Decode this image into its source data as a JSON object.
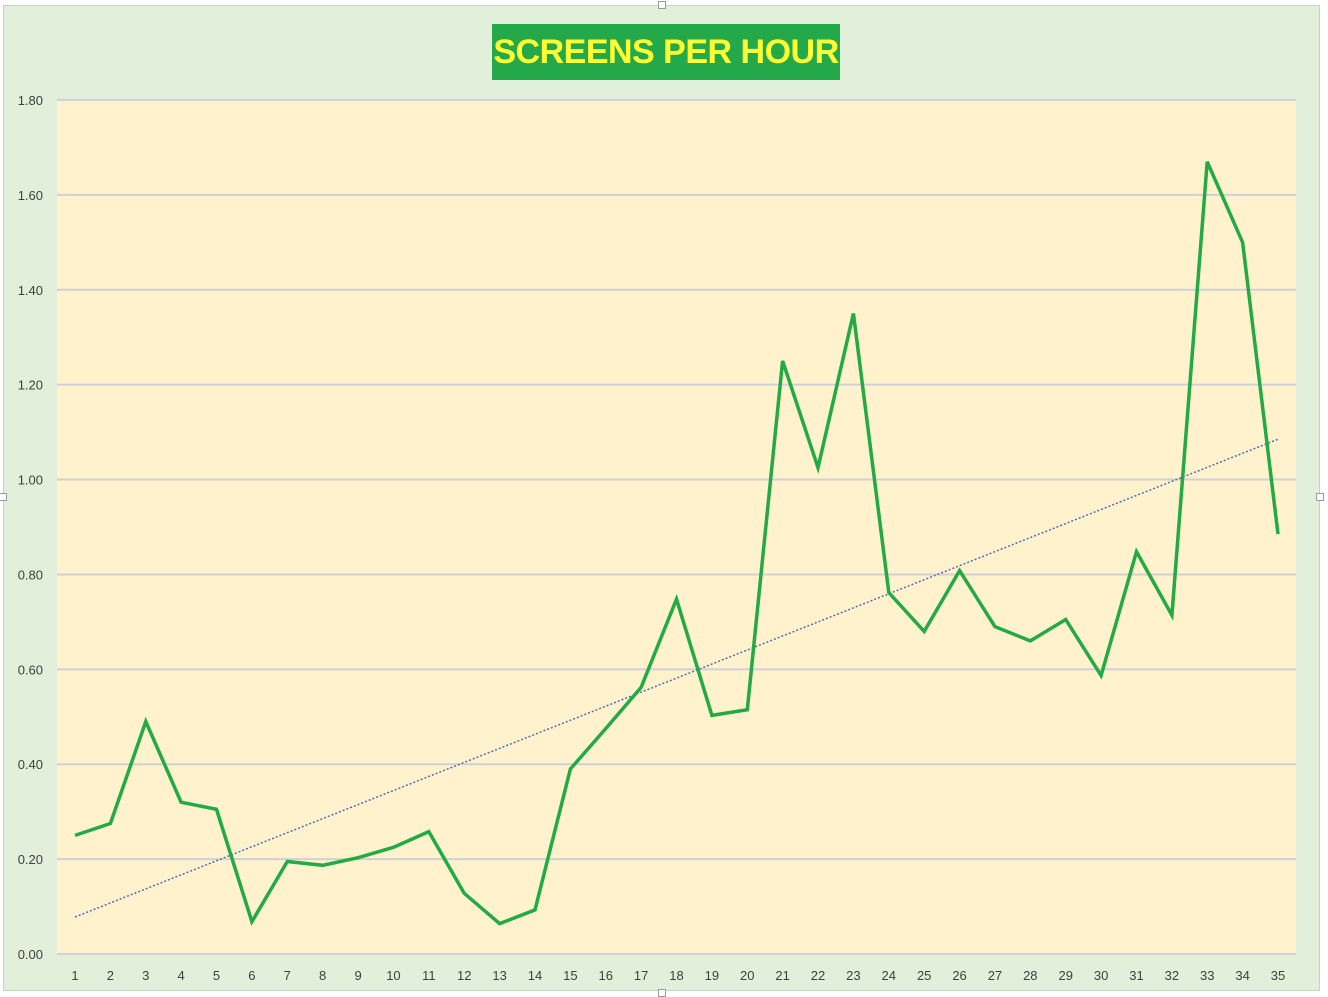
{
  "chart_data": {
    "type": "line",
    "title": "SCREENS PER HOUR",
    "xlabel": "",
    "ylabel": "",
    "categories": [
      "1",
      "2",
      "3",
      "4",
      "5",
      "6",
      "7",
      "8",
      "9",
      "10",
      "11",
      "12",
      "13",
      "14",
      "15",
      "16",
      "17",
      "18",
      "19",
      "20",
      "21",
      "22",
      "23",
      "24",
      "25",
      "26",
      "27",
      "28",
      "29",
      "30",
      "31",
      "32",
      "33",
      "34",
      "35"
    ],
    "series": [
      {
        "values": [
          0.25,
          0.275,
          0.49,
          0.32,
          0.305,
          0.068,
          0.195,
          0.187,
          0.203,
          0.225,
          0.258,
          0.128,
          0.064,
          0.093,
          0.39,
          0.475,
          0.562,
          0.748,
          0.503,
          0.515,
          1.25,
          1.025,
          1.35,
          0.762,
          0.68,
          0.808,
          0.69,
          0.66,
          0.705,
          0.587,
          0.848,
          0.714,
          1.67,
          1.5,
          0.885
        ],
        "color": "#22aa44",
        "style": "solid"
      },
      {
        "type": "linear-trendline",
        "start": 0.078,
        "end": 1.085,
        "color": "#4a6fb5",
        "style": "dotted"
      }
    ],
    "ylim": [
      0,
      1.8
    ],
    "ytick_labels": [
      "0.00",
      "0.20",
      "0.40",
      "0.60",
      "0.80",
      "1.00",
      "1.20",
      "1.40",
      "1.60",
      "1.80"
    ],
    "grid": true,
    "legend": "none",
    "colors": {
      "chart_background": "#e2efda",
      "plot_background": "#fff2cc",
      "title_background": "#23a84a",
      "title_text": "#ffff33",
      "gridline": "#d0d0d8"
    }
  }
}
